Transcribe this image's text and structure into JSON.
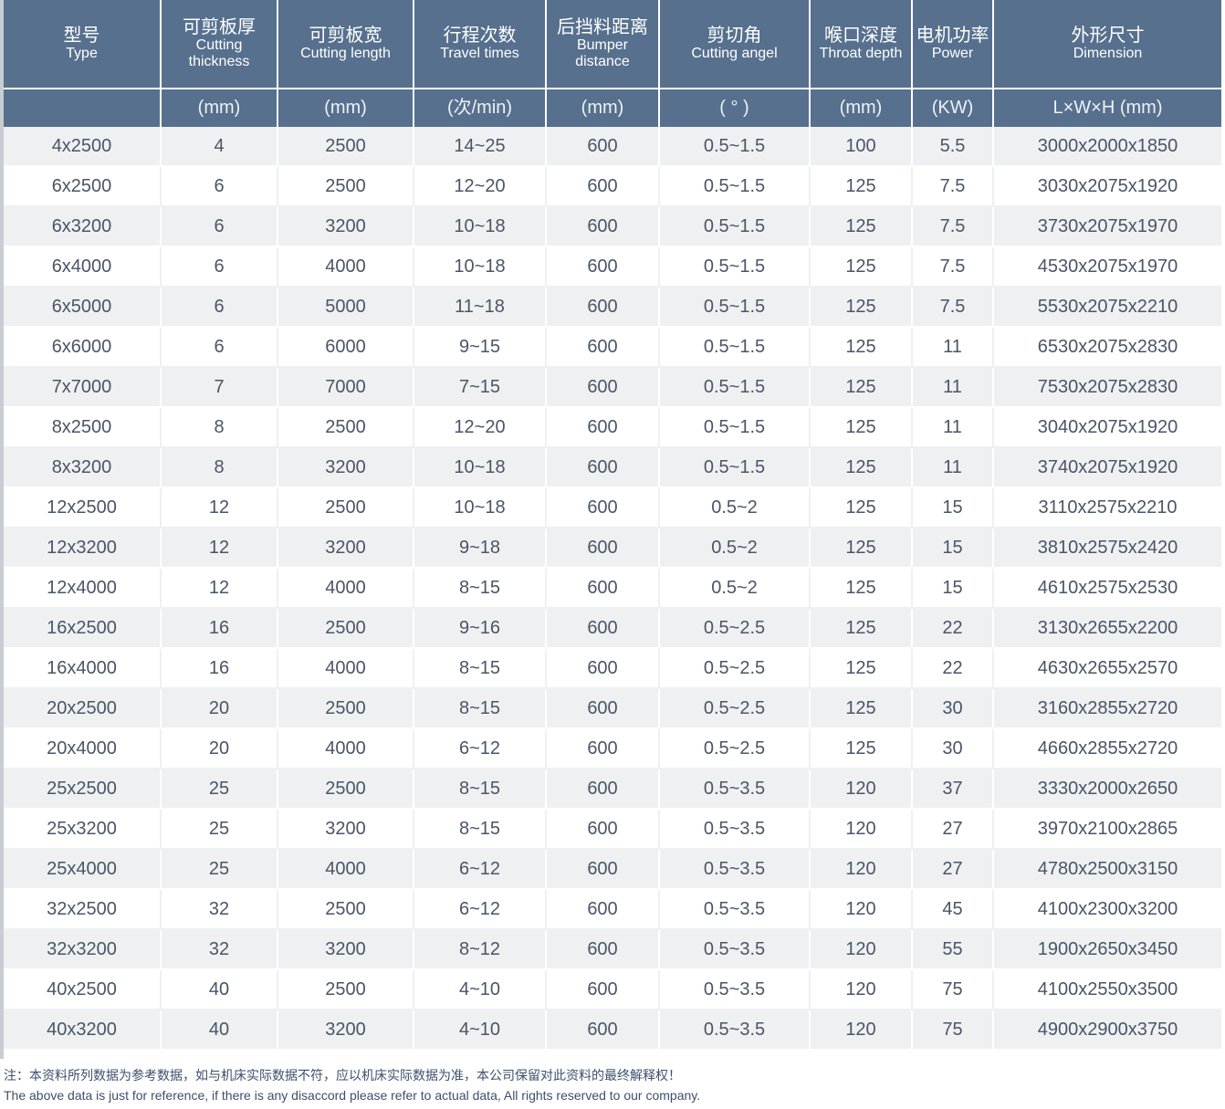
{
  "header": [
    {
      "zh": "型号",
      "en": "Type",
      "unit": ""
    },
    {
      "zh": "可剪板厚",
      "en": "Cutting thickness",
      "unit": "(mm)"
    },
    {
      "zh": "可剪板宽",
      "en": "Cutting length",
      "unit": "(mm)"
    },
    {
      "zh": "行程次数",
      "en": "Travel times",
      "unit": "(次/min)"
    },
    {
      "zh": "后挡料距离",
      "en": "Bumper distance",
      "unit": "(mm)"
    },
    {
      "zh": "剪切角",
      "en": "Cutting angel",
      "unit": "( ° )"
    },
    {
      "zh": "喉口深度",
      "en": "Throat depth",
      "unit": "(mm)"
    },
    {
      "zh": "电机功率",
      "en": "Power",
      "unit": "(KW)"
    },
    {
      "zh": "外形尺寸",
      "en": "Dimension",
      "unit": "L×W×H (mm)"
    }
  ],
  "rows": [
    [
      "4x2500",
      "4",
      "2500",
      "14~25",
      "600",
      "0.5~1.5",
      "100",
      "5.5",
      "3000x2000x1850"
    ],
    [
      "6x2500",
      "6",
      "2500",
      "12~20",
      "600",
      "0.5~1.5",
      "125",
      "7.5",
      "3030x2075x1920"
    ],
    [
      "6x3200",
      "6",
      "3200",
      "10~18",
      "600",
      "0.5~1.5",
      "125",
      "7.5",
      "3730x2075x1970"
    ],
    [
      "6x4000",
      "6",
      "4000",
      "10~18",
      "600",
      "0.5~1.5",
      "125",
      "7.5",
      "4530x2075x1970"
    ],
    [
      "6x5000",
      "6",
      "5000",
      "11~18",
      "600",
      "0.5~1.5",
      "125",
      "7.5",
      "5530x2075x2210"
    ],
    [
      "6x6000",
      "6",
      "6000",
      "9~15",
      "600",
      "0.5~1.5",
      "125",
      "11",
      "6530x2075x2830"
    ],
    [
      "7x7000",
      "7",
      "7000",
      "7~15",
      "600",
      "0.5~1.5",
      "125",
      "11",
      "7530x2075x2830"
    ],
    [
      "8x2500",
      "8",
      "2500",
      "12~20",
      "600",
      "0.5~1.5",
      "125",
      "11",
      "3040x2075x1920"
    ],
    [
      "8x3200",
      "8",
      "3200",
      "10~18",
      "600",
      "0.5~1.5",
      "125",
      "11",
      "3740x2075x1920"
    ],
    [
      "12x2500",
      "12",
      "2500",
      "10~18",
      "600",
      "0.5~2",
      "125",
      "15",
      "3110x2575x2210"
    ],
    [
      "12x3200",
      "12",
      "3200",
      "9~18",
      "600",
      "0.5~2",
      "125",
      "15",
      "3810x2575x2420"
    ],
    [
      "12x4000",
      "12",
      "4000",
      "8~15",
      "600",
      "0.5~2",
      "125",
      "15",
      "4610x2575x2530"
    ],
    [
      "16x2500",
      "16",
      "2500",
      "9~16",
      "600",
      "0.5~2.5",
      "125",
      "22",
      "3130x2655x2200"
    ],
    [
      "16x4000",
      "16",
      "4000",
      "8~15",
      "600",
      "0.5~2.5",
      "125",
      "22",
      "4630x2655x2570"
    ],
    [
      "20x2500",
      "20",
      "2500",
      "8~15",
      "600",
      "0.5~2.5",
      "125",
      "30",
      "3160x2855x2720"
    ],
    [
      "20x4000",
      "20",
      "4000",
      "6~12",
      "600",
      "0.5~2.5",
      "125",
      "30",
      "4660x2855x2720"
    ],
    [
      "25x2500",
      "25",
      "2500",
      "8~15",
      "600",
      "0.5~3.5",
      "120",
      "37",
      "3330x2000x2650"
    ],
    [
      "25x3200",
      "25",
      "3200",
      "8~15",
      "600",
      "0.5~3.5",
      "120",
      "27",
      "3970x2100x2865"
    ],
    [
      "25x4000",
      "25",
      "4000",
      "6~12",
      "600",
      "0.5~3.5",
      "120",
      "27",
      "4780x2500x3150"
    ],
    [
      "32x2500",
      "32",
      "2500",
      "6~12",
      "600",
      "0.5~3.5",
      "120",
      "45",
      "4100x2300x3200"
    ],
    [
      "32x3200",
      "32",
      "3200",
      "8~12",
      "600",
      "0.5~3.5",
      "120",
      "55",
      "1900x2650x3450"
    ],
    [
      "40x2500",
      "40",
      "2500",
      "4~10",
      "600",
      "0.5~3.5",
      "120",
      "75",
      "4100x2550x3500"
    ],
    [
      "40x3200",
      "40",
      "3200",
      "4~10",
      "600",
      "0.5~3.5",
      "120",
      "75",
      "4900x2900x3750"
    ]
  ],
  "notes": {
    "zh": "注：本资料所列数据为参考数据，如与机床实际数据不符，应以机床实际数据为准，本公司保留对此资料的最终解释权！",
    "en": "The above data is just for reference, if there is any disaccord please refer to actual data, All rights reserved to our company."
  }
}
